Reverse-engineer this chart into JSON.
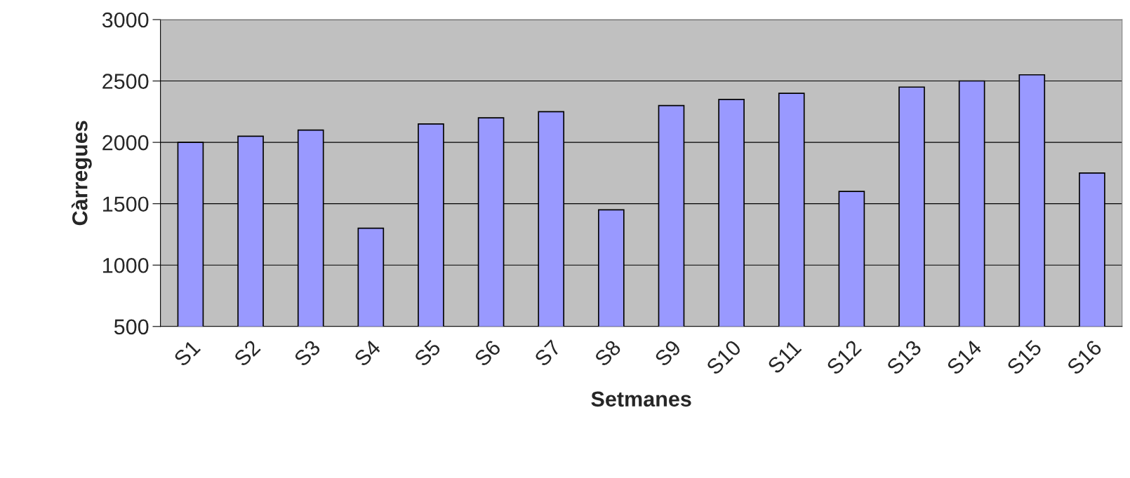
{
  "chart_data": {
    "type": "bar",
    "xlabel": "Setmanes",
    "ylabel": "Càrregues",
    "categories": [
      "S1",
      "S2",
      "S3",
      "S4",
      "S5",
      "S6",
      "S7",
      "S8",
      "S9",
      "S10",
      "S11",
      "S12",
      "S13",
      "S14",
      "S15",
      "S16"
    ],
    "values": [
      2000,
      2050,
      2100,
      1300,
      2150,
      2200,
      2250,
      1450,
      2300,
      2350,
      2400,
      1600,
      2450,
      2500,
      2550,
      1750
    ],
    "color": "#9999ff",
    "ylim": [
      500,
      3000
    ],
    "yticks": [
      500,
      1000,
      1500,
      2000,
      2500,
      3000
    ],
    "grid": "y",
    "legend": false
  }
}
